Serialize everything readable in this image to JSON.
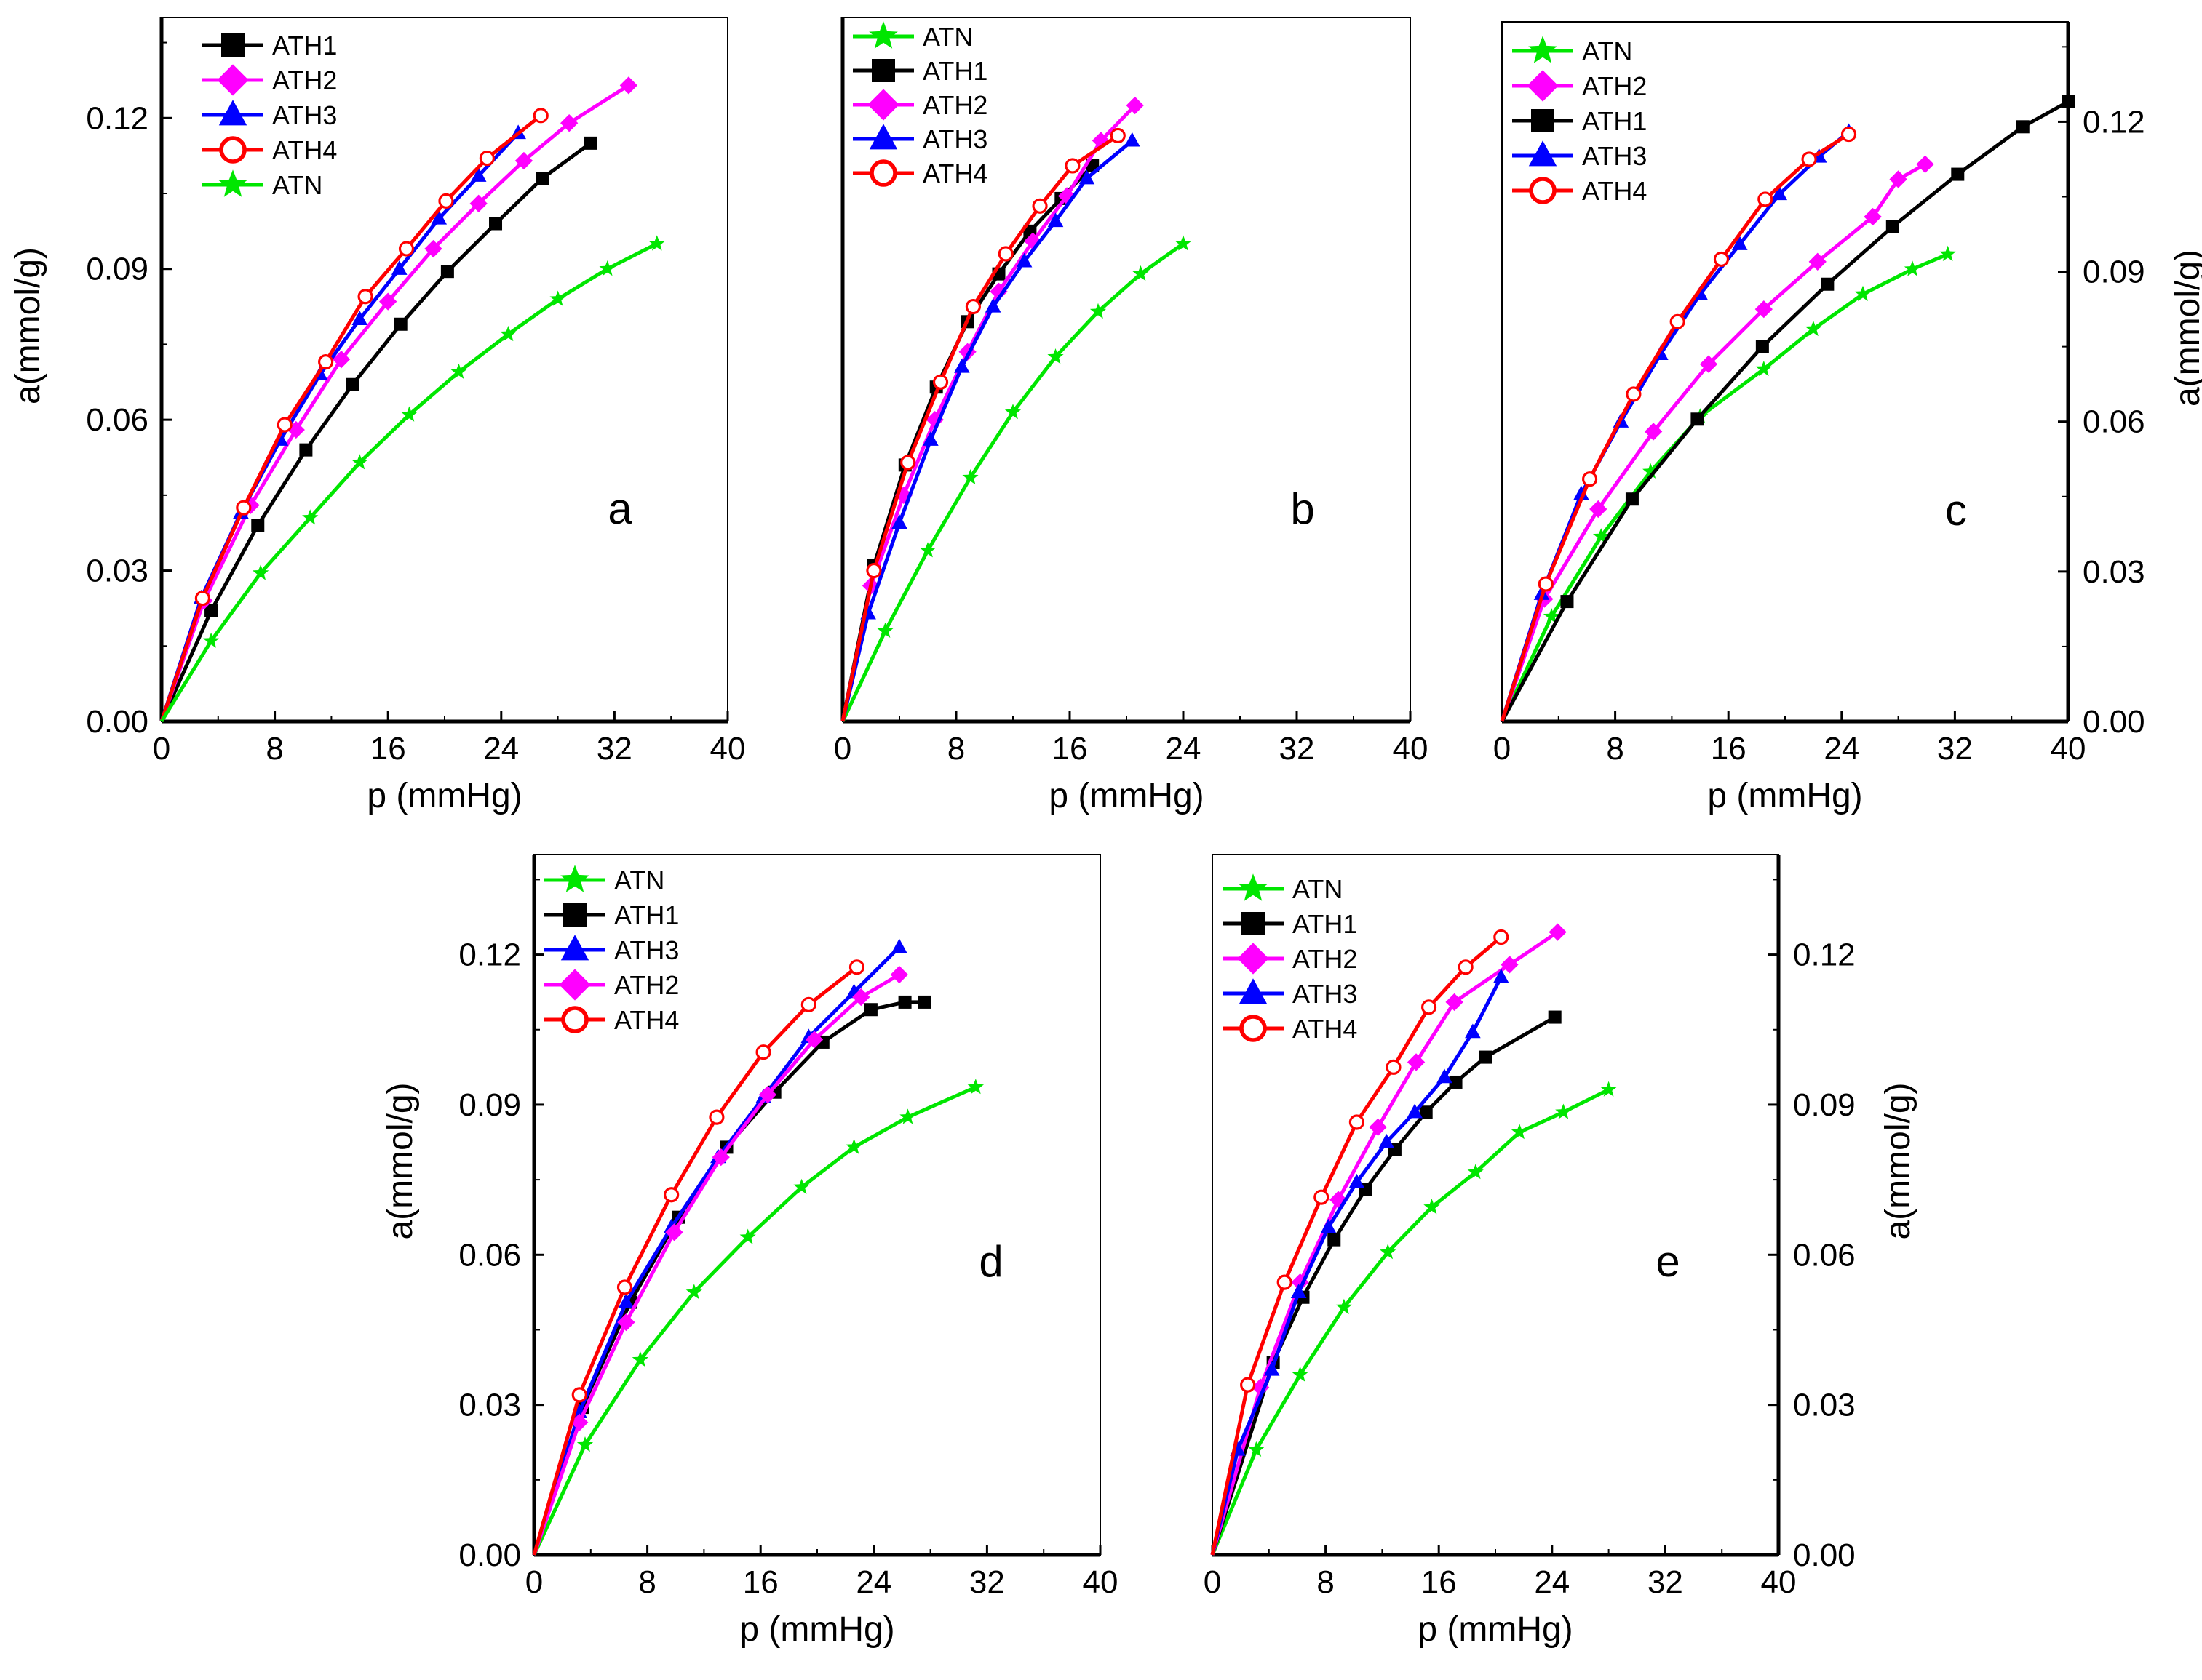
{
  "chart_data": [
    {
      "type": "line",
      "panel": "a",
      "xlabel": "p (mmHg)",
      "ylabel": "a(mmol/g)",
      "ylabel_side": "left",
      "xlim": [
        0,
        40
      ],
      "ylim": [
        0,
        0.14
      ],
      "xticks": [
        "0",
        "8",
        "16",
        "24",
        "32",
        "40"
      ],
      "yticks": [
        "0.00",
        "0.03",
        "0.06",
        "0.09",
        "0.12"
      ],
      "legend": [
        "ATH1",
        "ATH2",
        "ATH3",
        "ATH4",
        "ATN"
      ],
      "series": [
        {
          "name": "ATH1",
          "x": [
            0,
            3.5,
            6.8,
            10.2,
            13.5,
            16.9,
            20.2,
            23.6,
            26.9,
            30.3
          ],
          "y": [
            0,
            0.022,
            0.039,
            0.054,
            0.067,
            0.079,
            0.0895,
            0.099,
            0.108,
            0.115
          ]
        },
        {
          "name": "ATH2",
          "x": [
            0,
            3.0,
            6.3,
            9.5,
            12.7,
            16.0,
            19.2,
            22.4,
            25.6,
            28.8,
            33.0
          ],
          "y": [
            0,
            0.024,
            0.043,
            0.058,
            0.072,
            0.0835,
            0.094,
            0.103,
            0.1115,
            0.119,
            0.1265
          ]
        },
        {
          "name": "ATH3",
          "x": [
            0,
            2.8,
            5.6,
            8.4,
            11.2,
            14.0,
            16.8,
            19.6,
            22.4,
            25.2
          ],
          "y": [
            0,
            0.0245,
            0.0415,
            0.056,
            0.069,
            0.08,
            0.09,
            0.1,
            0.1085,
            0.117
          ]
        },
        {
          "name": "ATH4",
          "x": [
            0,
            2.9,
            5.8,
            8.7,
            11.6,
            14.4,
            17.3,
            20.1,
            23.0,
            26.8
          ],
          "y": [
            0,
            0.0245,
            0.0425,
            0.059,
            0.0715,
            0.0845,
            0.094,
            0.1035,
            0.112,
            0.1205
          ]
        },
        {
          "name": "ATN",
          "x": [
            0,
            3.5,
            7.0,
            10.5,
            14.0,
            17.5,
            21.0,
            24.5,
            28.0,
            31.5,
            35.0
          ],
          "y": [
            0,
            0.016,
            0.0295,
            0.0405,
            0.0515,
            0.061,
            0.0695,
            0.077,
            0.084,
            0.09,
            0.095
          ]
        }
      ]
    },
    {
      "type": "line",
      "panel": "b",
      "xlabel": "p (mmHg)",
      "ylabel": "",
      "ylabel_side": "none",
      "xlim": [
        0,
        40
      ],
      "ylim": [
        0,
        0.14
      ],
      "xticks": [
        "0",
        "8",
        "16",
        "24",
        "32",
        "40"
      ],
      "yticks": [],
      "legend": [
        "ATN",
        "ATH1",
        "ATH2",
        "ATH3",
        "ATH4"
      ],
      "series": [
        {
          "name": "ATN",
          "x": [
            0,
            3.0,
            6.0,
            9.0,
            12.0,
            15.0,
            18.0,
            21.0,
            24.0
          ],
          "y": [
            0,
            0.018,
            0.034,
            0.0485,
            0.0615,
            0.0725,
            0.0815,
            0.089,
            0.095
          ]
        },
        {
          "name": "ATH1",
          "x": [
            0,
            2.2,
            4.4,
            6.6,
            8.8,
            11.0,
            13.2,
            15.4,
            17.6
          ],
          "y": [
            0,
            0.031,
            0.051,
            0.0665,
            0.0795,
            0.089,
            0.0975,
            0.104,
            0.1105
          ]
        },
        {
          "name": "ATH2",
          "x": [
            0,
            2.0,
            4.3,
            6.5,
            8.8,
            11.0,
            13.4,
            15.8,
            18.2,
            20.6
          ],
          "y": [
            0,
            0.027,
            0.045,
            0.06,
            0.0735,
            0.0855,
            0.0955,
            0.1045,
            0.1155,
            0.1225
          ]
        },
        {
          "name": "ATH3",
          "x": [
            0,
            1.8,
            4.0,
            6.2,
            8.4,
            10.6,
            12.8,
            15.0,
            17.2,
            20.4
          ],
          "y": [
            0,
            0.0215,
            0.0395,
            0.056,
            0.0705,
            0.0825,
            0.0915,
            0.0995,
            0.108,
            0.1155
          ]
        },
        {
          "name": "ATH4",
          "x": [
            0,
            2.2,
            4.6,
            6.9,
            9.2,
            11.5,
            13.9,
            16.2,
            19.4
          ],
          "y": [
            0,
            0.03,
            0.0515,
            0.0675,
            0.0825,
            0.093,
            0.1025,
            0.1105,
            0.1165
          ]
        }
      ]
    },
    {
      "type": "line",
      "panel": "c",
      "xlabel": "p (mmHg)",
      "ylabel": "a(mmol/g)",
      "ylabel_side": "right",
      "xlim": [
        0,
        40
      ],
      "ylim": [
        0,
        0.14
      ],
      "xticks": [
        "0",
        "8",
        "16",
        "24",
        "32",
        "40"
      ],
      "yticks": [
        "0.00",
        "0.03",
        "0.06",
        "0.09",
        "0.12"
      ],
      "legend": [
        "ATN",
        "ATH2",
        "ATH1",
        "ATH3",
        "ATH4"
      ],
      "series": [
        {
          "name": "ATN",
          "x": [
            0,
            3.5,
            7.0,
            10.5,
            14.0,
            18.5,
            22.0,
            25.5,
            29.0,
            31.5
          ],
          "y": [
            0,
            0.021,
            0.037,
            0.05,
            0.061,
            0.0705,
            0.0785,
            0.0855,
            0.0905,
            0.0935
          ]
        },
        {
          "name": "ATH2",
          "x": [
            0,
            3.0,
            6.8,
            10.7,
            14.6,
            18.5,
            22.3,
            26.2,
            28.0,
            29.9
          ],
          "y": [
            0,
            0.0245,
            0.0425,
            0.058,
            0.0715,
            0.0825,
            0.092,
            0.101,
            0.1085,
            0.1115
          ]
        },
        {
          "name": "ATH1",
          "x": [
            0,
            4.6,
            9.2,
            13.8,
            18.4,
            23.0,
            27.6,
            32.2,
            36.8,
            40.0
          ],
          "y": [
            0,
            0.024,
            0.0445,
            0.0605,
            0.075,
            0.0875,
            0.099,
            0.1095,
            0.119,
            0.124
          ]
        },
        {
          "name": "ATH3",
          "x": [
            0,
            2.8,
            5.6,
            8.4,
            11.2,
            14.0,
            16.8,
            19.6,
            22.4,
            24.5
          ],
          "y": [
            0,
            0.0255,
            0.0455,
            0.06,
            0.0735,
            0.0855,
            0.0955,
            0.1055,
            0.113,
            0.118
          ]
        },
        {
          "name": "ATH4",
          "x": [
            0,
            3.1,
            6.2,
            9.3,
            12.4,
            15.5,
            18.6,
            21.7,
            24.5
          ],
          "y": [
            0,
            0.0275,
            0.0485,
            0.0655,
            0.08,
            0.0925,
            0.1045,
            0.1125,
            0.1175
          ]
        }
      ]
    },
    {
      "type": "line",
      "panel": "d",
      "xlabel": "p (mmHg)",
      "ylabel": "a(mmol/g)",
      "ylabel_side": "left",
      "xlim": [
        0,
        40
      ],
      "ylim": [
        0,
        0.14
      ],
      "xticks": [
        "0",
        "8",
        "16",
        "24",
        "32",
        "40"
      ],
      "yticks": [
        "0.00",
        "0.03",
        "0.06",
        "0.09",
        "0.12"
      ],
      "legend": [
        "ATN",
        "ATH1",
        "ATH3",
        "ATH2",
        "ATH4"
      ],
      "series": [
        {
          "name": "ATN",
          "x": [
            0,
            3.6,
            7.5,
            11.3,
            15.1,
            18.9,
            22.6,
            26.4,
            31.2
          ],
          "y": [
            0,
            0.022,
            0.039,
            0.0525,
            0.0635,
            0.0735,
            0.0815,
            0.0875,
            0.0935
          ]
        },
        {
          "name": "ATH1",
          "x": [
            0,
            3.4,
            6.8,
            10.2,
            13.6,
            17.0,
            20.4,
            23.8,
            26.2,
            27.6
          ],
          "y": [
            0,
            0.0295,
            0.0505,
            0.0675,
            0.0815,
            0.0925,
            0.1025,
            0.109,
            0.1105,
            0.1105
          ]
        },
        {
          "name": "ATH3",
          "x": [
            0,
            3.2,
            6.5,
            9.7,
            13.0,
            16.2,
            19.4,
            22.6,
            25.8
          ],
          "y": [
            0,
            0.0285,
            0.0505,
            0.0655,
            0.0795,
            0.0915,
            0.1035,
            0.1125,
            0.1215
          ]
        },
        {
          "name": "ATH2",
          "x": [
            0,
            3.2,
            6.5,
            9.9,
            13.2,
            16.5,
            19.8,
            23.1,
            25.8
          ],
          "y": [
            0,
            0.0265,
            0.0465,
            0.0645,
            0.0795,
            0.092,
            0.103,
            0.1115,
            0.116
          ]
        },
        {
          "name": "ATH4",
          "x": [
            0,
            3.2,
            6.4,
            9.7,
            12.9,
            16.2,
            19.4,
            22.8
          ],
          "y": [
            0,
            0.032,
            0.0535,
            0.072,
            0.0875,
            0.1005,
            0.11,
            0.1175
          ]
        }
      ]
    },
    {
      "type": "line",
      "panel": "e",
      "xlabel": "p (mmHg)",
      "ylabel": "a(mmol/g)",
      "ylabel_side": "right",
      "xlim": [
        0,
        40
      ],
      "ylim": [
        0,
        0.14
      ],
      "xticks": [
        "0",
        "8",
        "16",
        "24",
        "32",
        "40"
      ],
      "yticks": [
        "0.00",
        "0.03",
        "0.06",
        "0.09",
        "0.12"
      ],
      "legend": [
        "ATN",
        "ATH1",
        "ATH2",
        "ATH3",
        "ATH4"
      ],
      "series": [
        {
          "name": "ATN",
          "x": [
            0,
            3.1,
            6.2,
            9.3,
            12.4,
            15.5,
            18.6,
            21.7,
            24.8,
            28.0
          ],
          "y": [
            0,
            0.021,
            0.036,
            0.0495,
            0.0605,
            0.0695,
            0.0765,
            0.0845,
            0.0885,
            0.093
          ]
        },
        {
          "name": "ATH1",
          "x": [
            0,
            4.3,
            6.4,
            8.6,
            10.8,
            12.9,
            15.1,
            17.2,
            19.3,
            24.2
          ],
          "y": [
            0,
            0.0385,
            0.0515,
            0.063,
            0.073,
            0.081,
            0.0885,
            0.0945,
            0.0995,
            0.1075
          ]
        },
        {
          "name": "ATH2",
          "x": [
            0,
            3.4,
            6.2,
            8.9,
            11.7,
            14.4,
            17.1,
            21.0,
            24.4
          ],
          "y": [
            0,
            0.0335,
            0.0545,
            0.071,
            0.0855,
            0.0985,
            0.1105,
            0.118,
            0.1245
          ]
        },
        {
          "name": "ATH3",
          "x": [
            0,
            1.8,
            4.2,
            6.1,
            8.2,
            10.2,
            12.3,
            14.3,
            16.4,
            18.4,
            20.4
          ],
          "y": [
            0,
            0.021,
            0.037,
            0.0525,
            0.0655,
            0.0745,
            0.0825,
            0.0885,
            0.0955,
            0.1045,
            0.1155
          ]
        },
        {
          "name": "ATH4",
          "x": [
            0,
            2.5,
            5.1,
            7.7,
            10.2,
            12.8,
            15.3,
            17.9,
            20.4
          ],
          "y": [
            0,
            0.034,
            0.0545,
            0.0715,
            0.0865,
            0.0975,
            0.1095,
            0.1175,
            0.1235
          ]
        }
      ]
    }
  ],
  "series_styles": {
    "ATH1": {
      "color": "#000000",
      "marker": "square"
    },
    "ATH2": {
      "color": "#ff00ff",
      "marker": "diamond"
    },
    "ATH3": {
      "color": "#0000ff",
      "marker": "triangle"
    },
    "ATH4": {
      "color": "#ff0000",
      "marker": "open-circle"
    },
    "ATN": {
      "color": "#00e600",
      "marker": "star"
    }
  }
}
